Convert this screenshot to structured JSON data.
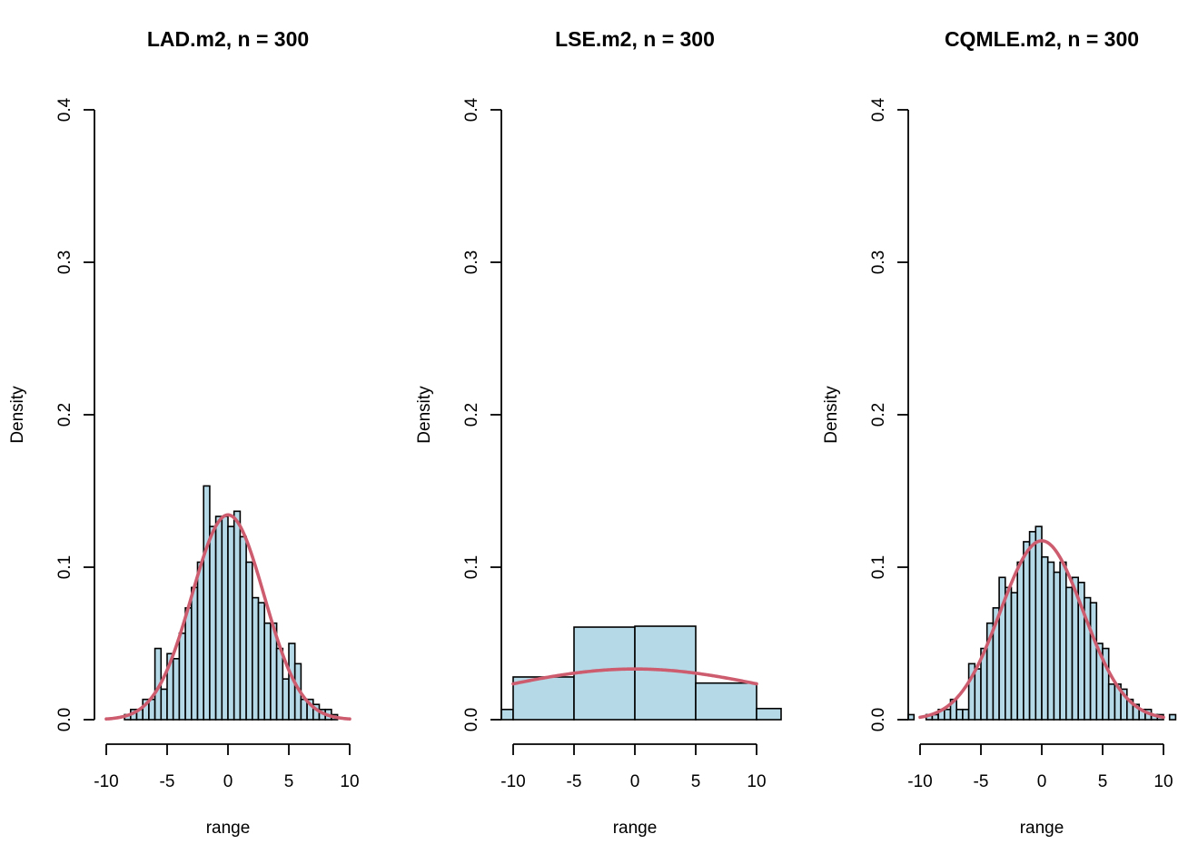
{
  "chart_data": [
    {
      "type": "histogram",
      "title": "LAD.m2, n = 300",
      "xlabel": "range",
      "ylabel": "Density",
      "xlim": [
        -10,
        10
      ],
      "ylim": [
        0,
        0.4
      ],
      "x_ticks": [
        "-10",
        "-5",
        "0",
        "5",
        "10"
      ],
      "y_ticks": [
        "0.0",
        "0.1",
        "0.2",
        "0.3",
        "0.4"
      ],
      "bar_color": "#b5d9e6",
      "curve_color": "#cd5c6f",
      "bin_width": 0.5,
      "bins": [
        {
          "x0": -8.5,
          "x1": -8.0,
          "density": 0.0033
        },
        {
          "x0": -8.0,
          "x1": -7.5,
          "density": 0.0067
        },
        {
          "x0": -7.5,
          "x1": -7.0,
          "density": 0.0067
        },
        {
          "x0": -7.0,
          "x1": -6.5,
          "density": 0.0133
        },
        {
          "x0": -6.5,
          "x1": -6.0,
          "density": 0.0133
        },
        {
          "x0": -6.0,
          "x1": -5.5,
          "density": 0.0467
        },
        {
          "x0": -5.5,
          "x1": -5.0,
          "density": 0.02
        },
        {
          "x0": -5.0,
          "x1": -4.5,
          "density": 0.0433
        },
        {
          "x0": -4.5,
          "x1": -4.0,
          "density": 0.04
        },
        {
          "x0": -4.0,
          "x1": -3.5,
          "density": 0.0567
        },
        {
          "x0": -3.5,
          "x1": -3.0,
          "density": 0.0733
        },
        {
          "x0": -3.0,
          "x1": -2.5,
          "density": 0.0867
        },
        {
          "x0": -2.5,
          "x1": -2.0,
          "density": 0.1033
        },
        {
          "x0": -2.0,
          "x1": -1.5,
          "density": 0.1533
        },
        {
          "x0": -1.5,
          "x1": -1.0,
          "density": 0.1267
        },
        {
          "x0": -1.0,
          "x1": -0.5,
          "density": 0.1333
        },
        {
          "x0": -0.5,
          "x1": 0.0,
          "density": 0.1333
        },
        {
          "x0": 0.0,
          "x1": 0.5,
          "density": 0.1267
        },
        {
          "x0": 0.5,
          "x1": 1.0,
          "density": 0.1367
        },
        {
          "x0": 1.0,
          "x1": 1.5,
          "density": 0.12
        },
        {
          "x0": 1.5,
          "x1": 2.0,
          "density": 0.1033
        },
        {
          "x0": 2.0,
          "x1": 2.5,
          "density": 0.08
        },
        {
          "x0": 2.5,
          "x1": 3.0,
          "density": 0.0767
        },
        {
          "x0": 3.0,
          "x1": 3.5,
          "density": 0.0633
        },
        {
          "x0": 3.5,
          "x1": 4.0,
          "density": 0.0633
        },
        {
          "x0": 4.0,
          "x1": 4.5,
          "density": 0.0467
        },
        {
          "x0": 4.5,
          "x1": 5.0,
          "density": 0.0267
        },
        {
          "x0": 5.0,
          "x1": 5.5,
          "density": 0.05
        },
        {
          "x0": 5.5,
          "x1": 6.0,
          "density": 0.0367
        },
        {
          "x0": 6.0,
          "x1": 6.5,
          "density": 0.0133
        },
        {
          "x0": 6.5,
          "x1": 7.0,
          "density": 0.0133
        },
        {
          "x0": 7.0,
          "x1": 7.5,
          "density": 0.01
        },
        {
          "x0": 7.5,
          "x1": 8.0,
          "density": 0.0067
        },
        {
          "x0": 8.0,
          "x1": 8.5,
          "density": 0.0067
        },
        {
          "x0": 8.5,
          "x1": 9.0,
          "density": 0.0033
        }
      ],
      "curve": {
        "type": "normal-density",
        "mean": 0,
        "sd": 2.97,
        "x_range": [
          -10,
          10
        ]
      }
    },
    {
      "type": "histogram",
      "title": "LSE.m2, n = 300",
      "xlabel": "range",
      "ylabel": "Density",
      "xlim": [
        -10,
        10
      ],
      "ylim": [
        0,
        0.4
      ],
      "x_ticks": [
        "-10",
        "-5",
        "0",
        "5",
        "10"
      ],
      "y_ticks": [
        "0.0",
        "0.1",
        "0.2",
        "0.3",
        "0.4"
      ],
      "bar_color": "#b5d9e6",
      "curve_color": "#cd5c6f",
      "bin_width": 5,
      "bins": [
        {
          "x0": -15,
          "x1": -10,
          "density": 0.0067
        },
        {
          "x0": -10,
          "x1": -5,
          "density": 0.028
        },
        {
          "x0": -5,
          "x1": 0,
          "density": 0.0607
        },
        {
          "x0": 0,
          "x1": 5,
          "density": 0.0613
        },
        {
          "x0": 5,
          "x1": 10,
          "density": 0.024
        },
        {
          "x0": 10,
          "x1": 15,
          "density": 0.0073
        }
      ],
      "curve": {
        "type": "normal-density",
        "mean": 0,
        "sd": 12.0,
        "x_range": [
          -10,
          10
        ]
      }
    },
    {
      "type": "histogram",
      "title": "CQMLE.m2, n = 300",
      "xlabel": "range",
      "ylabel": "Density",
      "xlim": [
        -10,
        10
      ],
      "ylim": [
        0,
        0.4
      ],
      "x_ticks": [
        "-10",
        "-5",
        "0",
        "5",
        "10"
      ],
      "y_ticks": [
        "0.0",
        "0.1",
        "0.2",
        "0.3",
        "0.4"
      ],
      "bar_color": "#b5d9e6",
      "curve_color": "#cd5c6f",
      "bin_width": 0.5,
      "bins": [
        {
          "x0": -11.0,
          "x1": -10.5,
          "density": 0.0033
        },
        {
          "x0": -9.5,
          "x1": -9.0,
          "density": 0.0033
        },
        {
          "x0": -9.0,
          "x1": -8.5,
          "density": 0.0033
        },
        {
          "x0": -8.5,
          "x1": -8.0,
          "density": 0.0067
        },
        {
          "x0": -8.0,
          "x1": -7.5,
          "density": 0.0067
        },
        {
          "x0": -7.5,
          "x1": -7.0,
          "density": 0.0133
        },
        {
          "x0": -7.0,
          "x1": -6.5,
          "density": 0.0067
        },
        {
          "x0": -6.5,
          "x1": -6.0,
          "density": 0.0067
        },
        {
          "x0": -6.0,
          "x1": -5.5,
          "density": 0.0367
        },
        {
          "x0": -5.5,
          "x1": -5.0,
          "density": 0.0333
        },
        {
          "x0": -5.0,
          "x1": -4.5,
          "density": 0.0467
        },
        {
          "x0": -4.5,
          "x1": -4.0,
          "density": 0.0633
        },
        {
          "x0": -4.0,
          "x1": -3.5,
          "density": 0.0733
        },
        {
          "x0": -3.5,
          "x1": -3.0,
          "density": 0.0933
        },
        {
          "x0": -3.0,
          "x1": -2.5,
          "density": 0.0867
        },
        {
          "x0": -2.5,
          "x1": -2.0,
          "density": 0.0833
        },
        {
          "x0": -2.0,
          "x1": -1.5,
          "density": 0.1033
        },
        {
          "x0": -1.5,
          "x1": -1.0,
          "density": 0.1167
        },
        {
          "x0": -1.0,
          "x1": -0.5,
          "density": 0.1233
        },
        {
          "x0": -0.5,
          "x1": 0.0,
          "density": 0.1267
        },
        {
          "x0": 0.0,
          "x1": 0.5,
          "density": 0.1067
        },
        {
          "x0": 0.5,
          "x1": 1.0,
          "density": 0.1033
        },
        {
          "x0": 1.0,
          "x1": 1.5,
          "density": 0.0967
        },
        {
          "x0": 1.5,
          "x1": 2.0,
          "density": 0.1033
        },
        {
          "x0": 2.0,
          "x1": 2.5,
          "density": 0.0867
        },
        {
          "x0": 2.5,
          "x1": 3.0,
          "density": 0.0933
        },
        {
          "x0": 3.0,
          "x1": 3.5,
          "density": 0.09
        },
        {
          "x0": 3.5,
          "x1": 4.0,
          "density": 0.08
        },
        {
          "x0": 4.0,
          "x1": 4.5,
          "density": 0.0767
        },
        {
          "x0": 4.5,
          "x1": 5.0,
          "density": 0.05
        },
        {
          "x0": 5.0,
          "x1": 5.5,
          "density": 0.0467
        },
        {
          "x0": 5.5,
          "x1": 6.0,
          "density": 0.0233
        },
        {
          "x0": 6.0,
          "x1": 6.5,
          "density": 0.0233
        },
        {
          "x0": 6.5,
          "x1": 7.0,
          "density": 0.02
        },
        {
          "x0": 7.0,
          "x1": 7.5,
          "density": 0.0133
        },
        {
          "x0": 7.5,
          "x1": 8.0,
          "density": 0.01
        },
        {
          "x0": 8.0,
          "x1": 8.5,
          "density": 0.0067
        },
        {
          "x0": 8.5,
          "x1": 9.0,
          "density": 0.0067
        },
        {
          "x0": 9.0,
          "x1": 9.5,
          "density": 0.0033
        },
        {
          "x0": 9.5,
          "x1": 10.0,
          "density": 0.0033
        },
        {
          "x0": 10.5,
          "x1": 11.0,
          "density": 0.0033
        }
      ],
      "curve": {
        "type": "normal-density",
        "mean": 0,
        "sd": 3.4,
        "x_range": [
          -10,
          10
        ]
      }
    }
  ]
}
